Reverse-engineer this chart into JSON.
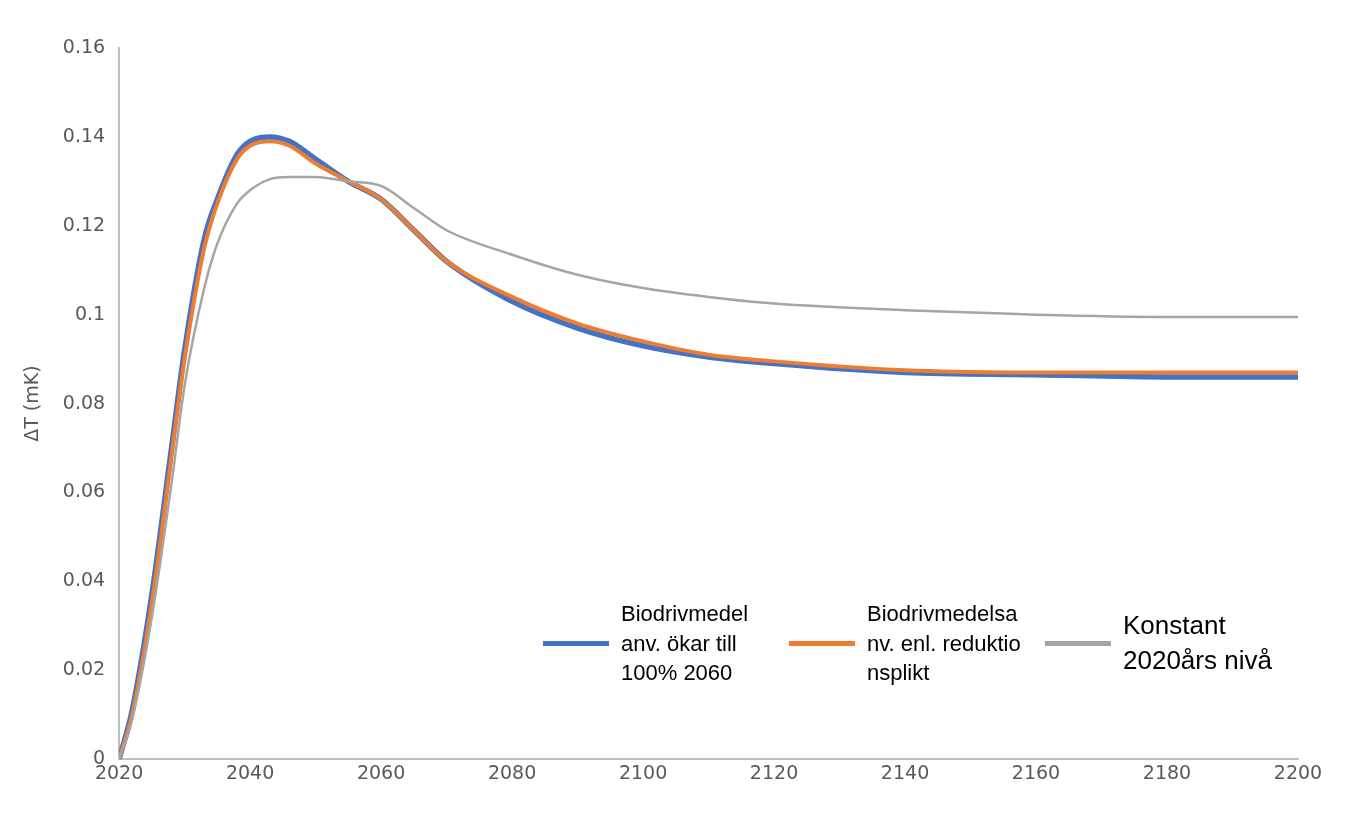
{
  "chart_data": {
    "type": "line",
    "ylabel": "ΔT (mK)",
    "x": [
      2020,
      2022,
      2025,
      2028,
      2030,
      2033,
      2035,
      2038,
      2040,
      2043,
      2046,
      2050,
      2055,
      2060,
      2065,
      2070,
      2080,
      2090,
      2100,
      2110,
      2120,
      2140,
      2160,
      2180,
      2200
    ],
    "series": [
      {
        "name": "Biodrivmedel anv. ökar till 100% 2060",
        "color": "#4472c4",
        "values": [
          0,
          0.011,
          0.037,
          0.07,
          0.092,
          0.117,
          0.126,
          0.136,
          0.139,
          0.14,
          0.139,
          0.135,
          0.13,
          0.126,
          0.119,
          0.112,
          0.103,
          0.097,
          0.093,
          0.0905,
          0.089,
          0.087,
          0.0865,
          0.086,
          0.086
        ]
      },
      {
        "name": "Biodrivmedelsanv. enl. reduktionsplikt",
        "color": "#ed7d31",
        "values": [
          0,
          0.01,
          0.035,
          0.068,
          0.09,
          0.115,
          0.125,
          0.135,
          0.138,
          0.139,
          0.138,
          0.134,
          0.13,
          0.126,
          0.119,
          0.112,
          0.104,
          0.098,
          0.094,
          0.091,
          0.0895,
          0.0875,
          0.087,
          0.087,
          0.087
        ]
      },
      {
        "name": "Konstant 2020års nivå",
        "color": "#a5a5a5",
        "values": [
          0,
          0.009,
          0.032,
          0.062,
          0.084,
          0.106,
          0.116,
          0.125,
          0.128,
          0.1305,
          0.131,
          0.131,
          0.13,
          0.129,
          0.124,
          0.119,
          0.1135,
          0.109,
          0.106,
          0.104,
          0.1025,
          0.101,
          0.1,
          0.0995,
          0.0995
        ]
      }
    ],
    "xlim": [
      2020,
      2200
    ],
    "xticks": [
      2020,
      2040,
      2060,
      2080,
      2100,
      2120,
      2140,
      2160,
      2180,
      2200
    ],
    "ylim": [
      0,
      0.16
    ],
    "yticks": [
      0,
      0.02,
      0.04,
      0.06,
      0.08,
      0.1,
      0.12,
      0.14,
      0.16
    ],
    "grid": false,
    "legend": "bottom right",
    "marker": "none",
    "line_style": "solid"
  }
}
